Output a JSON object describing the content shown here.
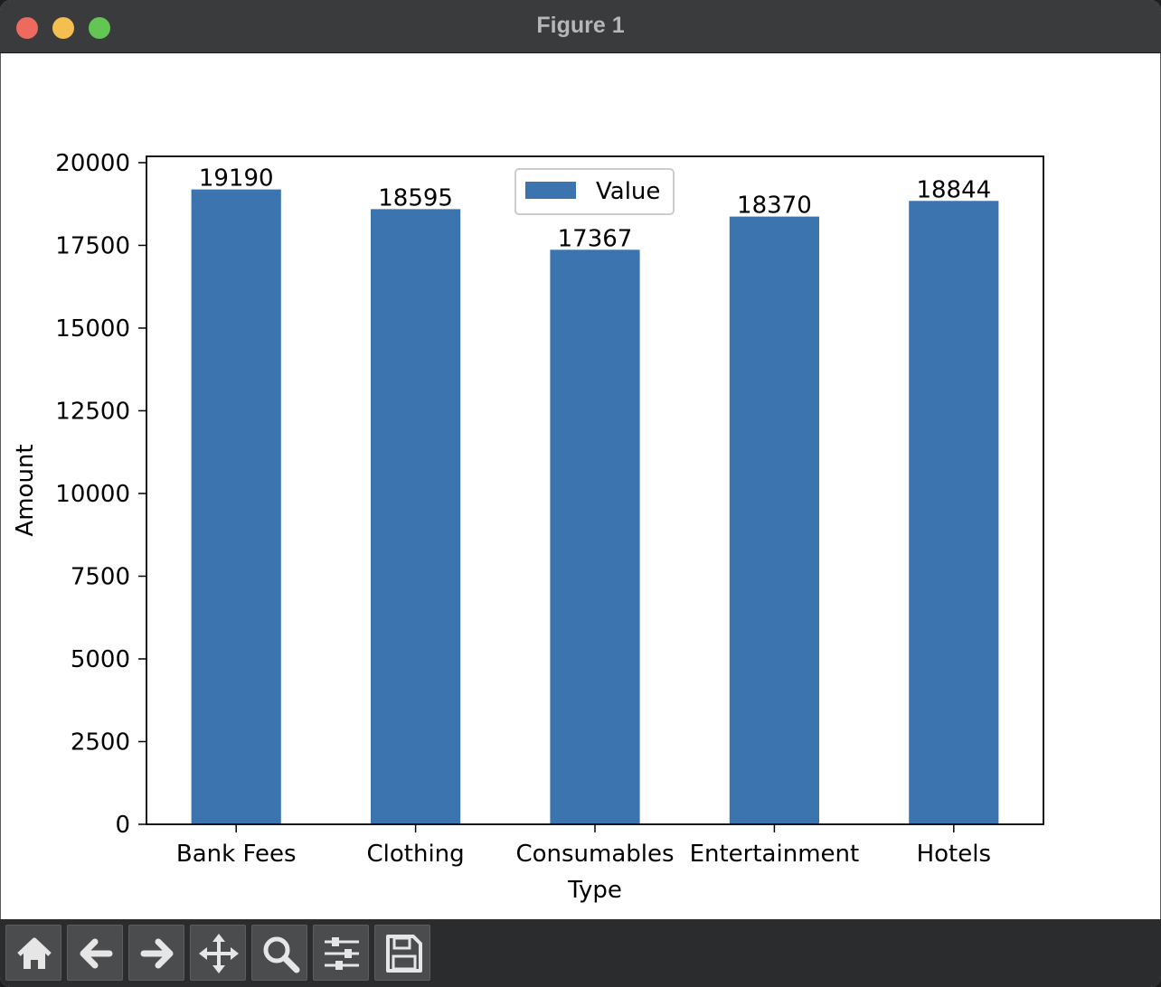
{
  "window": {
    "title": "Figure 1"
  },
  "toolbar": {
    "buttons": [
      {
        "name": "home",
        "icon": "home-icon"
      },
      {
        "name": "back",
        "icon": "arrow-left-icon"
      },
      {
        "name": "forward",
        "icon": "arrow-right-icon"
      },
      {
        "name": "pan",
        "icon": "move-icon"
      },
      {
        "name": "zoom",
        "icon": "magnifier-icon"
      },
      {
        "name": "configure",
        "icon": "sliders-icon"
      },
      {
        "name": "save",
        "icon": "floppy-disk-icon"
      }
    ]
  },
  "chart_data": {
    "type": "bar",
    "categories": [
      "Bank Fees",
      "Clothing",
      "Consumables",
      "Entertainment",
      "Hotels"
    ],
    "series": [
      {
        "name": "Value",
        "values": [
          19190,
          18595,
          17367,
          18370,
          18844
        ],
        "color": "#3b74ae"
      }
    ],
    "data_labels": [
      "19190",
      "18595",
      "17367",
      "18370",
      "18844"
    ],
    "xlabel": "Type",
    "ylabel": "Amount",
    "ylim": [
      0,
      20190
    ],
    "yticks": [
      0,
      2500,
      5000,
      7500,
      10000,
      12500,
      15000,
      17500,
      20000
    ],
    "ytick_labels": [
      "0",
      "2500",
      "5000",
      "7500",
      "10000",
      "12500",
      "15000",
      "17500",
      "20000"
    ],
    "legend": {
      "position": "top-center",
      "entries": [
        "Value"
      ]
    },
    "grid": false
  }
}
